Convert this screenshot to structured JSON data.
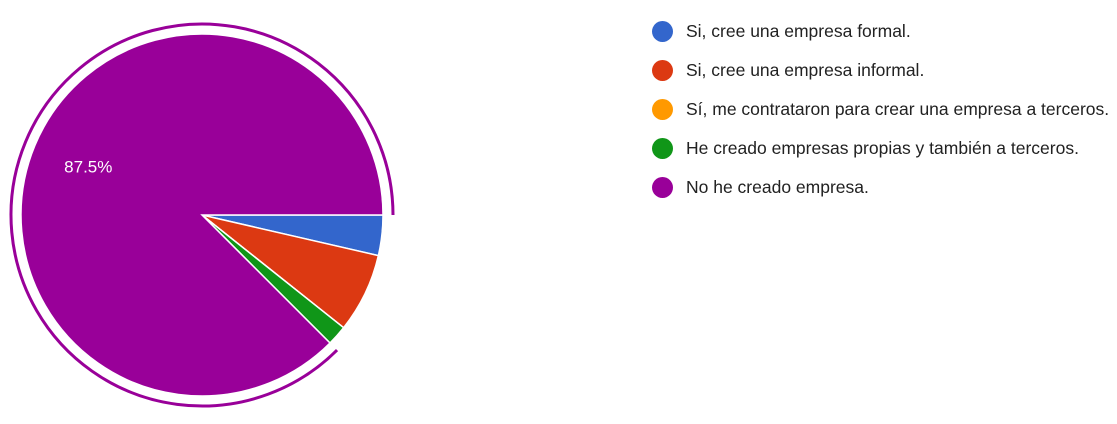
{
  "chart_data": {
    "type": "pie",
    "categories": [
      "Si, cree una empresa formal.",
      "Si, cree una empresa informal.",
      "Sí, me contrataron para crear una empresa a terceros.",
      "He creado empresas propias y también a terceros.",
      "No he creado empresa."
    ],
    "values": [
      3.6,
      7.1,
      0,
      1.8,
      87.5
    ],
    "value_labels": [
      null,
      null,
      null,
      null,
      "87.5%"
    ],
    "colors": [
      "#3366cc",
      "#dc3912",
      "#ff9900",
      "#109618",
      "#990099"
    ],
    "legend": "right"
  }
}
